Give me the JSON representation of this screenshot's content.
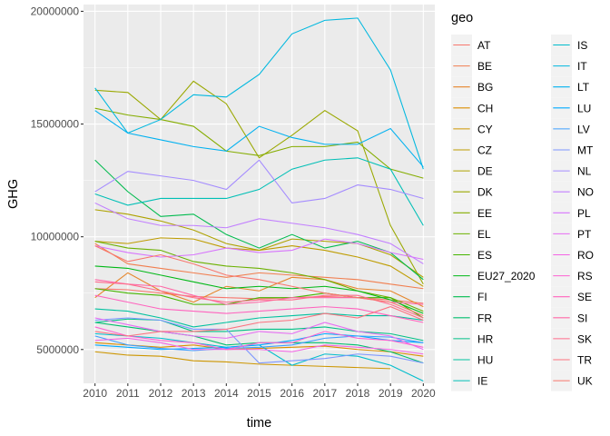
{
  "chart_data": {
    "type": "line",
    "title": "",
    "xlabel": "time",
    "ylabel": "GHG",
    "x": [
      2010,
      2011,
      2012,
      2013,
      2014,
      2015,
      2016,
      2017,
      2018,
      2019,
      2020
    ],
    "x_tick_labels": [
      "2010",
      "2011",
      "2012",
      "2013",
      "2014",
      "2015",
      "2016",
      "2017",
      "2018",
      "2019",
      "2020"
    ],
    "y_ticks": [
      5000000,
      10000000,
      15000000,
      20000000
    ],
    "y_tick_labels": [
      "5000000",
      "10000000",
      "15000000",
      "20000000"
    ],
    "xlim": [
      2009.65,
      2020.35
    ],
    "ylim": [
      3500000,
      20300000
    ],
    "grid": true,
    "legend": {
      "title": "geo",
      "placement": "right",
      "columns": 2
    },
    "series": [
      {
        "name": "AT",
        "color": "#F8766D",
        "values": [
          7700000,
          7650000,
          7500000,
          7350000,
          7300000,
          7250000,
          7300000,
          7350000,
          7300000,
          7200000,
          7050000
        ]
      },
      {
        "name": "BE",
        "color": "#F17E4F",
        "values": [
          9700000,
          8800000,
          8600000,
          8400000,
          8200000,
          8400000,
          8300000,
          8200000,
          8100000,
          7900000,
          7700000
        ]
      },
      {
        "name": "BG",
        "color": "#E6852A",
        "values": [
          7300000,
          8400000,
          7600000,
          7100000,
          7800000,
          7600000,
          8200000,
          8100000,
          7700000,
          7600000,
          6900000
        ]
      },
      {
        "name": "CH",
        "color": "#DB8E00",
        "values": [
          5300000,
          5200000,
          5100000,
          5200000,
          5000000,
          5050000,
          5100000,
          5150000,
          5000000,
          4900000,
          4700000
        ]
      },
      {
        "name": "CY",
        "color": "#CD9600",
        "values": [
          4900000,
          4750000,
          4700000,
          4500000,
          4450000,
          4350000,
          4300000,
          4250000,
          4200000,
          4150000,
          null
        ]
      },
      {
        "name": "CZ",
        "color": "#BE9C00",
        "values": [
          9800000,
          9700000,
          9950000,
          9900000,
          9500000,
          9400000,
          9600000,
          9400000,
          9100000,
          8700000,
          7800000
        ]
      },
      {
        "name": "DE",
        "color": "#AEA200",
        "values": [
          11200000,
          11000000,
          10700000,
          10300000,
          9700000,
          9400000,
          9900000,
          9800000,
          9700000,
          9200000,
          8200000
        ]
      },
      {
        "name": "DK",
        "color": "#9AA800",
        "values": [
          16500000,
          16400000,
          15200000,
          16900000,
          15900000,
          13500000,
          14500000,
          15600000,
          14700000,
          10500000,
          7900000
        ]
      },
      {
        "name": "EE",
        "color": "#85AD00",
        "values": [
          15700000,
          15400000,
          15200000,
          14900000,
          13800000,
          13600000,
          14000000,
          14000000,
          14200000,
          13000000,
          12600000
        ]
      },
      {
        "name": "EL",
        "color": "#6BB100",
        "values": [
          9800000,
          9500000,
          9400000,
          8900000,
          8700000,
          8600000,
          8400000,
          8100000,
          7600000,
          7300000,
          6700000
        ]
      },
      {
        "name": "ES",
        "color": "#45B500",
        "values": [
          7700000,
          7500000,
          7400000,
          7000000,
          7000000,
          7300000,
          7300000,
          7500000,
          7300000,
          7300000,
          6400000
        ]
      },
      {
        "name": "EU27_2020",
        "color": "#00B816",
        "values": [
          8700000,
          8600000,
          8300000,
          8000000,
          7700000,
          7800000,
          7700000,
          7800000,
          7600000,
          7200000,
          6600000
        ]
      },
      {
        "name": "FI",
        "color": "#00BB4E",
        "values": [
          13400000,
          12000000,
          10900000,
          11000000,
          10100000,
          9500000,
          10100000,
          9500000,
          9800000,
          9300000,
          8100000
        ]
      },
      {
        "name": "FR",
        "color": "#00BE6C",
        "values": [
          6200000,
          6000000,
          5800000,
          5600000,
          5200000,
          5300000,
          5300000,
          5300000,
          5200000,
          4900000,
          4400000
        ]
      },
      {
        "name": "HR",
        "color": "#00C086",
        "values": [
          6200000,
          6350000,
          6300000,
          5800000,
          5800000,
          5900000,
          5900000,
          6000000,
          5800000,
          5700000,
          5400000
        ]
      },
      {
        "name": "HU",
        "color": "#00C19F",
        "values": [
          6800000,
          6700000,
          6400000,
          6000000,
          6200000,
          6400000,
          6500000,
          6600000,
          6500000,
          6500000,
          6300000
        ]
      },
      {
        "name": "IE",
        "color": "#00BFB6",
        "values": [
          11900000,
          11400000,
          11700000,
          11700000,
          11700000,
          12100000,
          13000000,
          13400000,
          13500000,
          13000000,
          10500000
        ]
      },
      {
        "name": "IS",
        "color": "#00BDCC",
        "values": [
          5700000,
          5600000,
          5500000,
          5300000,
          5100000,
          5200000,
          4300000,
          4800000,
          4700000,
          4300000,
          3600000
        ]
      },
      {
        "name": "IT",
        "color": "#00B8DF",
        "values": [
          16600000,
          14600000,
          15200000,
          16300000,
          16200000,
          17200000,
          19000000,
          19600000,
          19700000,
          17400000,
          13000000
        ]
      },
      {
        "name": "LT",
        "color": "#00B1F0",
        "values": [
          15600000,
          14600000,
          14300000,
          14000000,
          13800000,
          14900000,
          14400000,
          14100000,
          14100000,
          14800000,
          13100000
        ]
      },
      {
        "name": "LU",
        "color": "#00A9FF",
        "values": [
          5200000,
          5100000,
          5000000,
          5050000,
          5100000,
          5200000,
          5400000,
          5700000,
          5600000,
          5400000,
          5300000
        ]
      },
      {
        "name": "LV",
        "color": "#3E9FFF",
        "values": [
          5600000,
          5200000,
          5050000,
          4950000,
          5050000,
          5100000,
          5200000,
          5500000,
          5600000,
          5550000,
          5300000
        ]
      },
      {
        "name": "MT",
        "color": "#7C96FF",
        "values": [
          6300000,
          6400000,
          6300000,
          5900000,
          5900000,
          4400000,
          4500000,
          4600000,
          4800000,
          4700000,
          4400000
        ]
      },
      {
        "name": "NL",
        "color": "#A48BFF",
        "values": [
          12000000,
          12900000,
          12700000,
          12500000,
          12100000,
          13400000,
          11500000,
          11700000,
          12300000,
          12100000,
          11700000
        ]
      },
      {
        "name": "NO",
        "color": "#C27FFF",
        "values": [
          11500000,
          10800000,
          10500000,
          10500000,
          10400000,
          10800000,
          10600000,
          10400000,
          10100000,
          9700000,
          8800000
        ]
      },
      {
        "name": "PL",
        "color": "#D774FD",
        "values": [
          9600000,
          9300000,
          9100000,
          9200000,
          9500000,
          9300000,
          9400000,
          9900000,
          9700000,
          9300000,
          9000000
        ]
      },
      {
        "name": "PT",
        "color": "#E76BF3",
        "values": [
          6400000,
          6100000,
          5800000,
          5600000,
          5500000,
          5800000,
          5700000,
          6200000,
          5800000,
          5600000,
          5000000
        ]
      },
      {
        "name": "RO",
        "color": "#F464E5",
        "values": [
          5400000,
          5500000,
          5300000,
          5000000,
          5000000,
          5000000,
          4900000,
          5200000,
          5100000,
          5000000,
          4800000
        ]
      },
      {
        "name": "RS",
        "color": "#FD61D3",
        "values": [
          6000000,
          5600000,
          5400000,
          5300000,
          5000000,
          5300000,
          5300000,
          5800000,
          5500000,
          5400000,
          5100000
        ]
      },
      {
        "name": "SE",
        "color": "#FF63BE",
        "values": [
          7400000,
          7100000,
          6800000,
          6700000,
          6600000,
          6700000,
          6800000,
          6900000,
          6800000,
          6500000,
          6200000
        ]
      },
      {
        "name": "SI",
        "color": "#FF67A6",
        "values": [
          8100000,
          7900000,
          7800000,
          7400000,
          7000000,
          7100000,
          7300000,
          7300000,
          7300000,
          7100000,
          7000000
        ]
      },
      {
        "name": "SK",
        "color": "#FF6C8C",
        "values": [
          8000000,
          7900000,
          7600000,
          7300000,
          7100000,
          7200000,
          7200000,
          7400000,
          7400000,
          7000000,
          6400000
        ]
      },
      {
        "name": "TR",
        "color": "#FC717F",
        "values": [
          5800000,
          5600000,
          5800000,
          5800000,
          5900000,
          6200000,
          6300000,
          6600000,
          6400000,
          6900000,
          6300000
        ]
      },
      {
        "name": "UK",
        "color": "#F8766D",
        "values": [
          9600000,
          8900000,
          9200000,
          8800000,
          8300000,
          8100000,
          7800000,
          7500000,
          7300000,
          7100000,
          6500000
        ]
      }
    ]
  }
}
